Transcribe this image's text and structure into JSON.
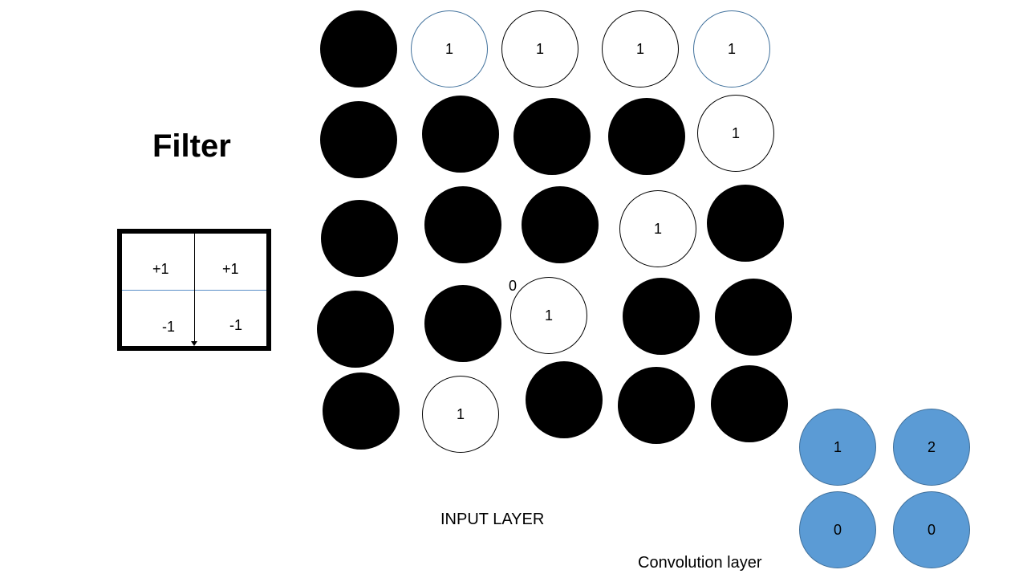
{
  "filter": {
    "title": "Filter",
    "cells": [
      "+1",
      "+1",
      "-1",
      "-1"
    ]
  },
  "input_layer": {
    "label": "INPUT LAYER",
    "stray_value": "0",
    "rows": [
      [
        {
          "fill": "black",
          "value": ""
        },
        {
          "fill": "white",
          "value": "1",
          "edge": "blue"
        },
        {
          "fill": "white",
          "value": "1"
        },
        {
          "fill": "white",
          "value": "1"
        },
        {
          "fill": "white",
          "value": "1",
          "edge": "blue"
        }
      ],
      [
        {
          "fill": "black",
          "value": ""
        },
        {
          "fill": "black",
          "value": ""
        },
        {
          "fill": "black",
          "value": ""
        },
        {
          "fill": "black",
          "value": ""
        },
        {
          "fill": "white",
          "value": "1"
        }
      ],
      [
        {
          "fill": "black",
          "value": ""
        },
        {
          "fill": "black",
          "value": ""
        },
        {
          "fill": "black",
          "value": ""
        },
        {
          "fill": "white",
          "value": "1"
        },
        {
          "fill": "black",
          "value": ""
        }
      ],
      [
        {
          "fill": "black",
          "value": ""
        },
        {
          "fill": "black",
          "value": ""
        },
        {
          "fill": "white",
          "value": "1"
        },
        {
          "fill": "black",
          "value": ""
        },
        {
          "fill": "black",
          "value": ""
        }
      ],
      [
        {
          "fill": "black",
          "value": ""
        },
        {
          "fill": "white",
          "value": "1"
        },
        {
          "fill": "black",
          "value": ""
        },
        {
          "fill": "black",
          "value": ""
        },
        {
          "fill": "black",
          "value": ""
        }
      ]
    ]
  },
  "convolution_layer": {
    "label": "Convolution layer",
    "values": [
      "1",
      "2",
      "0",
      "0"
    ],
    "color": "#5b9bd5"
  }
}
